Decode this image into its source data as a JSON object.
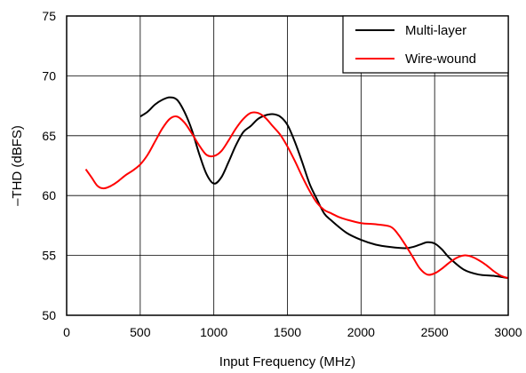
{
  "chart_data": {
    "type": "line",
    "xlabel": "Input Frequency (MHz)",
    "ylabel": "–THD (dBFS)",
    "xlim": [
      0,
      3000
    ],
    "ylim": [
      50,
      75
    ],
    "xticks": [
      0,
      500,
      1000,
      1500,
      2000,
      2500,
      3000
    ],
    "yticks": [
      50,
      55,
      60,
      65,
      70,
      75
    ],
    "grid": true,
    "legend": "top-right",
    "series": [
      {
        "name": "Multi-layer",
        "color": "#000000",
        "x": [
          500,
          550,
          600,
          650,
          700,
          750,
          800,
          850,
          900,
          950,
          1000,
          1050,
          1100,
          1150,
          1200,
          1250,
          1300,
          1350,
          1400,
          1450,
          1500,
          1550,
          1600,
          1650,
          1700,
          1750,
          1800,
          1900,
          2000,
          2100,
          2200,
          2300,
          2350,
          2400,
          2450,
          2500,
          2550,
          2600,
          2700,
          2800,
          2900,
          3000
        ],
        "y": [
          66.6,
          67.0,
          67.6,
          68.0,
          68.2,
          68.0,
          67.0,
          65.5,
          63.5,
          61.8,
          61.0,
          61.5,
          62.8,
          64.2,
          65.3,
          65.8,
          66.4,
          66.7,
          66.8,
          66.6,
          65.9,
          64.5,
          62.8,
          61.0,
          59.7,
          58.5,
          57.9,
          56.9,
          56.3,
          55.9,
          55.7,
          55.6,
          55.7,
          55.9,
          56.1,
          56.0,
          55.5,
          54.8,
          53.8,
          53.4,
          53.3,
          53.1
        ]
      },
      {
        "name": "Wire-wound",
        "color": "#ff0000",
        "x": [
          130,
          170,
          210,
          250,
          300,
          350,
          400,
          450,
          500,
          550,
          600,
          650,
          700,
          750,
          800,
          850,
          900,
          950,
          1000,
          1050,
          1100,
          1150,
          1200,
          1250,
          1300,
          1350,
          1400,
          1450,
          1500,
          1550,
          1600,
          1650,
          1700,
          1750,
          1800,
          1850,
          1900,
          2000,
          2100,
          2200,
          2250,
          2300,
          2350,
          2400,
          2450,
          2500,
          2550,
          2600,
          2650,
          2700,
          2750,
          2800,
          2850,
          2900,
          2950,
          3000
        ],
        "y": [
          62.2,
          61.5,
          60.8,
          60.6,
          60.8,
          61.2,
          61.7,
          62.1,
          62.6,
          63.4,
          64.5,
          65.6,
          66.4,
          66.6,
          66.1,
          65.2,
          64.2,
          63.4,
          63.3,
          63.7,
          64.6,
          65.6,
          66.4,
          66.9,
          66.9,
          66.5,
          65.8,
          65.1,
          64.1,
          62.9,
          61.6,
          60.4,
          59.4,
          58.8,
          58.5,
          58.2,
          58.0,
          57.7,
          57.6,
          57.4,
          56.8,
          55.9,
          54.9,
          53.9,
          53.4,
          53.5,
          53.9,
          54.4,
          54.8,
          55.0,
          54.9,
          54.6,
          54.2,
          53.7,
          53.3,
          53.1
        ]
      }
    ]
  }
}
